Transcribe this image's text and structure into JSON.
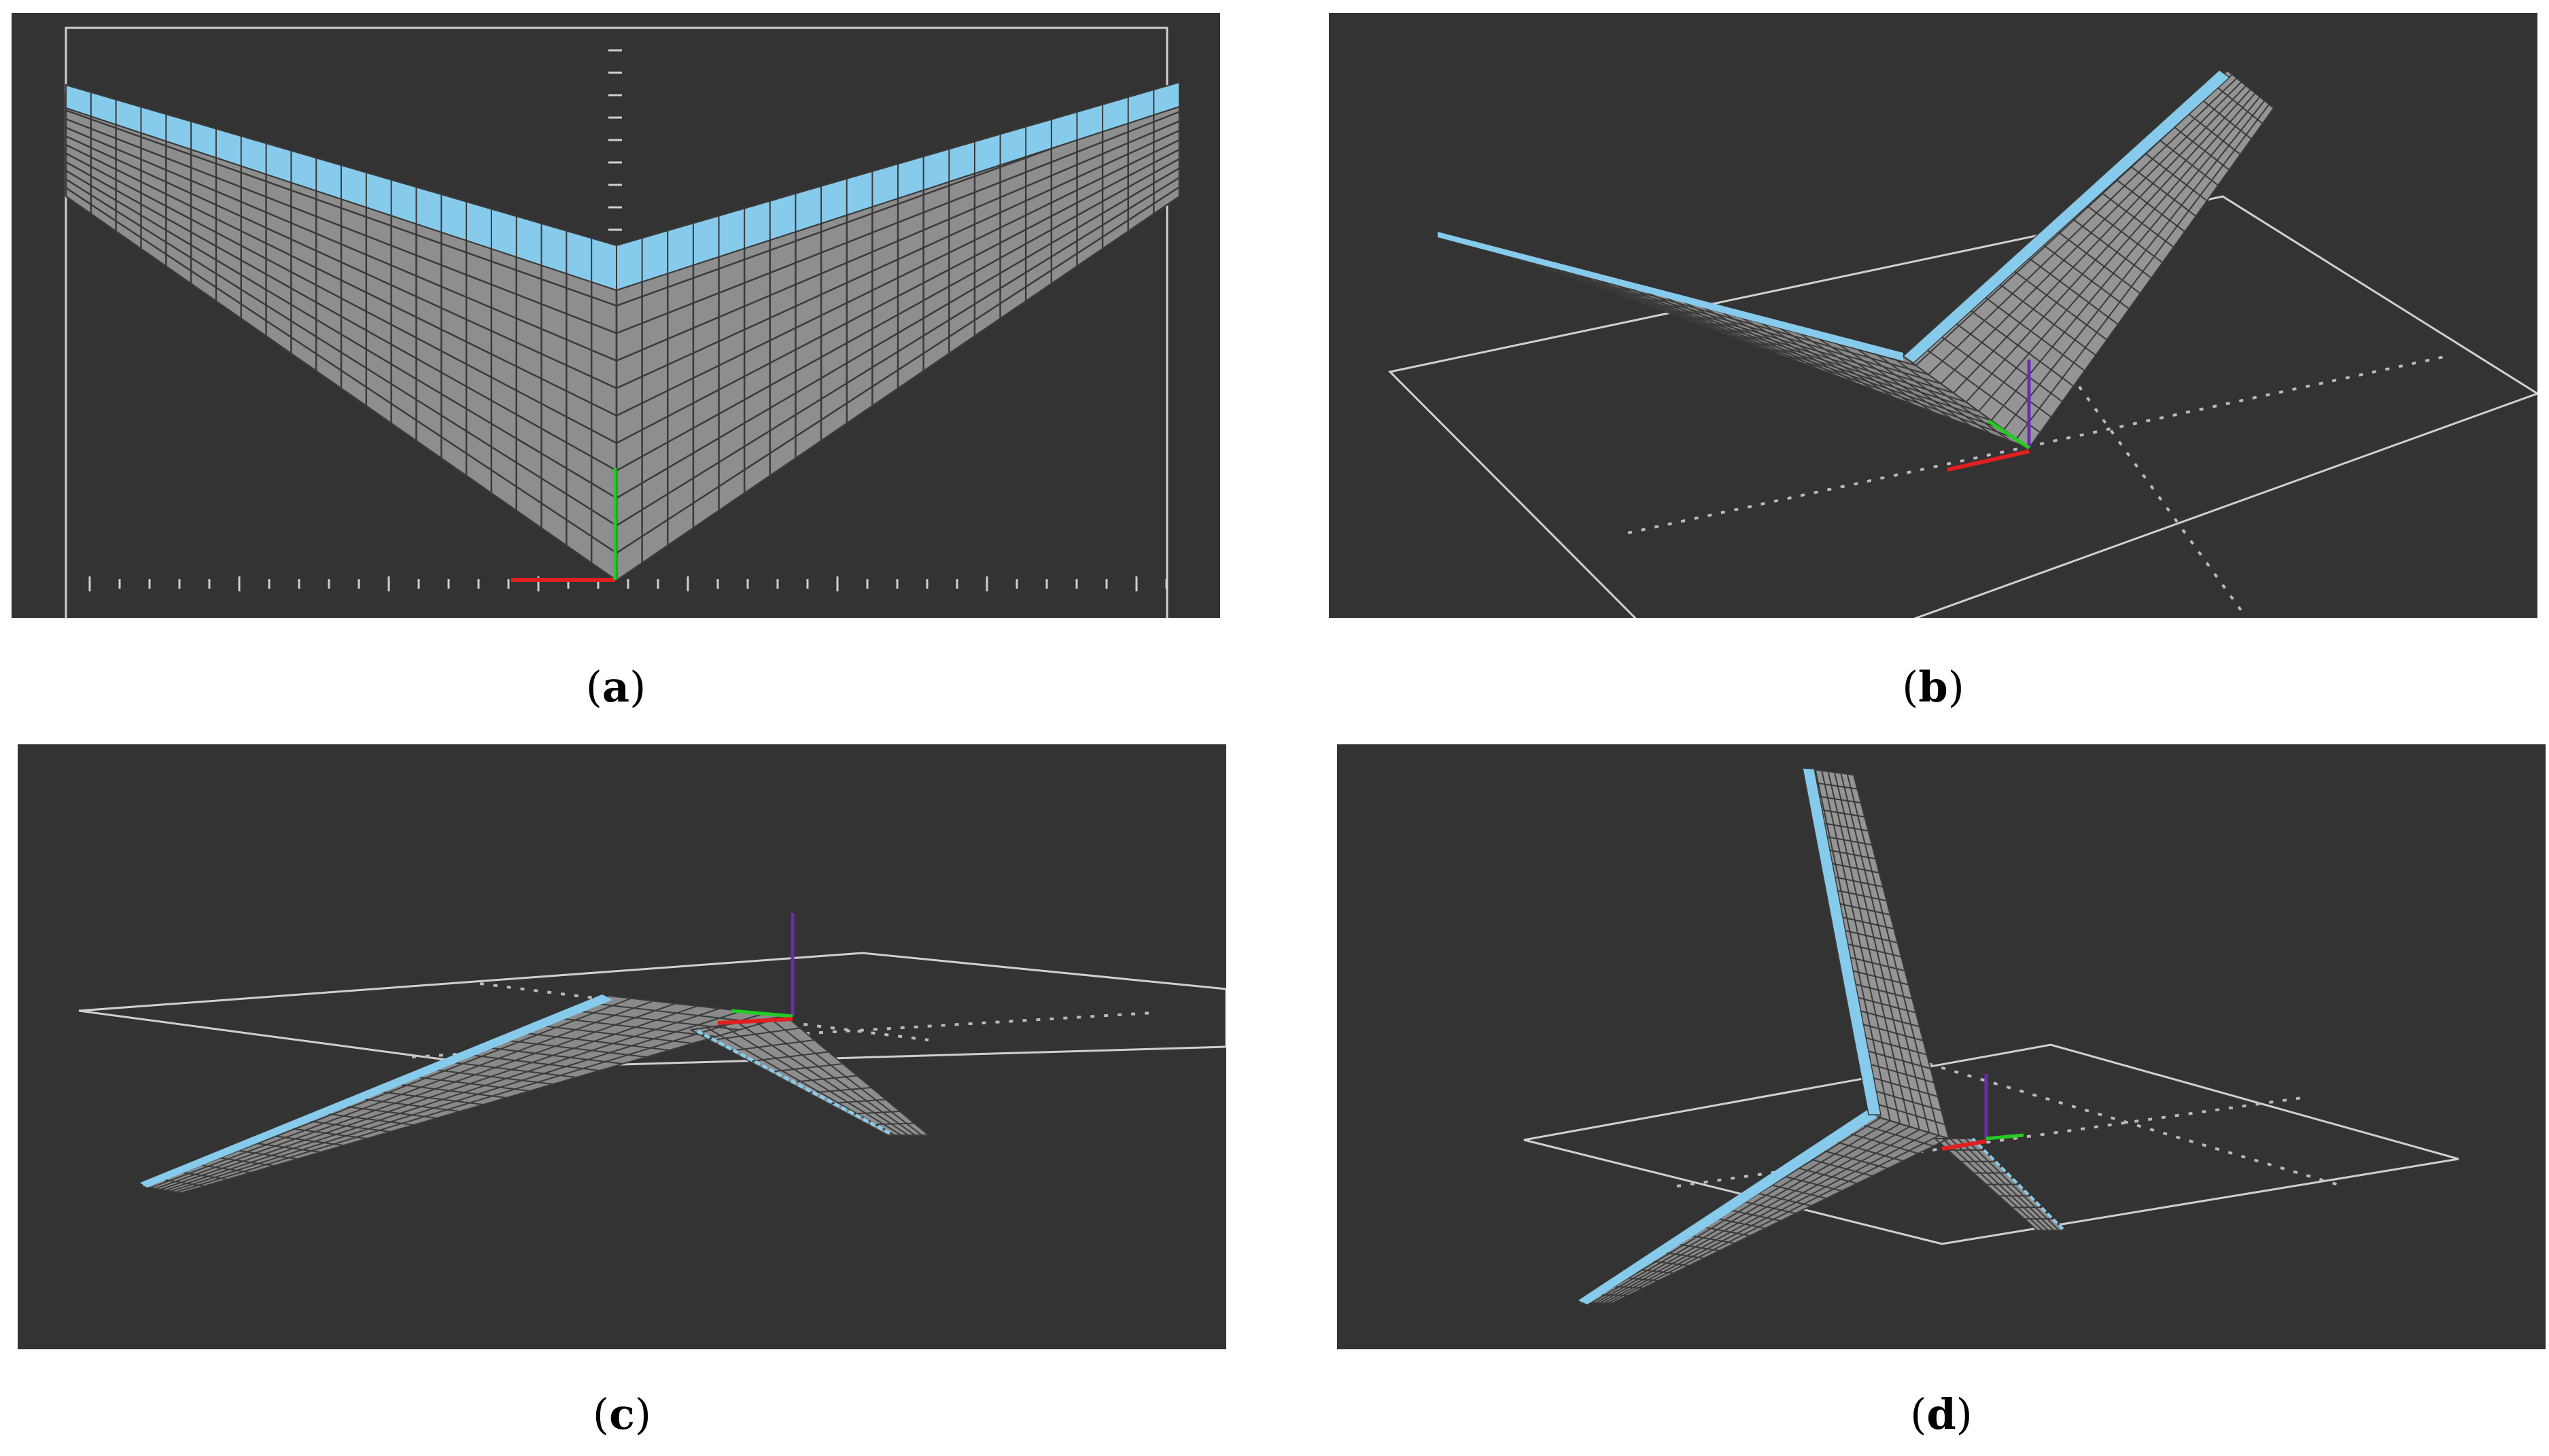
{
  "colors": {
    "viewport_bg": "#333333",
    "wing_surface": "#8e8e8e",
    "mesh_line": "#3a3a3a",
    "leading_edge": "#87cbec",
    "grid_line": "#d0d0d0",
    "axis_x": "#e02020",
    "axis_y": "#22cc22",
    "axis_z": "#6a2cb0"
  },
  "panels": [
    {
      "id": "a",
      "caption_open": "(",
      "caption_letter": "a",
      "caption_close": ")",
      "view": "top"
    },
    {
      "id": "b",
      "caption_open": "(",
      "caption_letter": "b",
      "caption_close": ")",
      "view": "isometric"
    },
    {
      "id": "c",
      "caption_open": "(",
      "caption_letter": "c",
      "caption_close": ")",
      "view": "low-angle"
    },
    {
      "id": "d",
      "caption_open": "(",
      "caption_letter": "d",
      "caption_close": ")",
      "view": "oblique"
    }
  ]
}
